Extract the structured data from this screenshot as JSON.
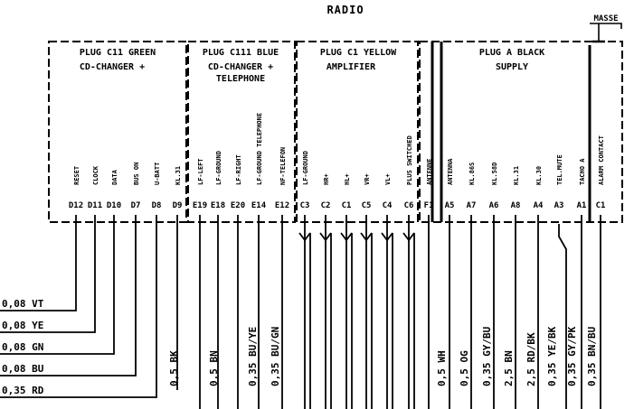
{
  "title": "RADIO",
  "ground_label": "MASSE",
  "plugs": [
    {
      "line1": "PLUG C11 GREEN",
      "line2": "CD-CHANGER +",
      "line3": ""
    },
    {
      "line1": "PLUG C111 BLUE",
      "line2": "CD-CHANGER +",
      "line3": "TELEPHONE"
    },
    {
      "line1": "PLUG C1 YELLOW",
      "line2": "AMPLIFIER",
      "line3": ""
    },
    {
      "line1": "PLUG A BLACK",
      "line2": "SUPPLY",
      "line3": ""
    }
  ],
  "pins": [
    {
      "label": "RESET",
      "id": "D12"
    },
    {
      "label": "CLOCK",
      "id": "D11"
    },
    {
      "label": "DATA",
      "id": "D10"
    },
    {
      "label": "BUS ON",
      "id": "D7"
    },
    {
      "label": "U-BATT",
      "id": "D8"
    },
    {
      "label": "KL.31",
      "id": "D9"
    },
    {
      "label": "LF-LEFT",
      "id": "E19"
    },
    {
      "label": "LF-GROUND",
      "id": "E18"
    },
    {
      "label": "LF-RIGHT",
      "id": "E20"
    },
    {
      "label": "LF-GROUND TELEPHONE",
      "id": "E14"
    },
    {
      "label": "NF-TELEFON",
      "id": "E12"
    },
    {
      "label": "LF-GROUND",
      "id": "C3"
    },
    {
      "label": "HR+",
      "id": "C2"
    },
    {
      "label": "HL+",
      "id": "C1"
    },
    {
      "label": "VR+",
      "id": "C5"
    },
    {
      "label": "VL+",
      "id": "C4"
    },
    {
      "label": "PLUS SWITCHED",
      "id": "C6"
    },
    {
      "label": "ANTENNE",
      "id": "F1"
    },
    {
      "label": "ANTENNA",
      "id": "A5"
    },
    {
      "label": "KL.86S",
      "id": "A7"
    },
    {
      "label": "KL.58D",
      "id": "A6"
    },
    {
      "label": "KL.31",
      "id": "A8"
    },
    {
      "label": "KL.30",
      "id": "A4"
    },
    {
      "label": "TEL.MUTE",
      "id": "A3"
    },
    {
      "label": "TACHO A",
      "id": "A1"
    },
    {
      "label": "ALARM CONTACT",
      "id": "C1"
    }
  ],
  "left_wires": [
    "0,08 VT",
    "0,08 YE",
    "0,08 GN",
    "0,08 BU",
    "0,35 RD"
  ],
  "bottom_wires": [
    "0,5 BK",
    "0,5 BN",
    "0,35 BU/YE",
    "0,35 BU/GN",
    "0,5 WH",
    "0,5 OG",
    "0,35 GY/BU",
    "2,5 BN",
    "2,5 RD/BK",
    "0,35 YE/BK",
    "0,35 GY/PK",
    "0,35 BN/BU"
  ]
}
